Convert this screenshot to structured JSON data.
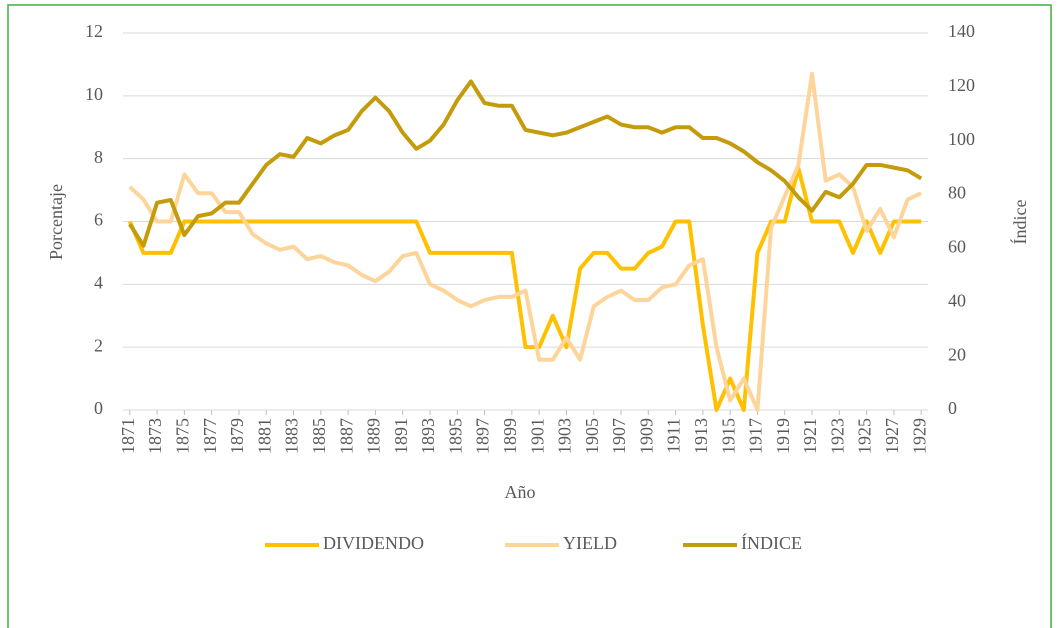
{
  "chart_data": {
    "type": "line",
    "x_label": "Año",
    "y_label": "Porcentaje",
    "y2_label": "Índice",
    "x": [
      1871,
      1872,
      1873,
      1874,
      1875,
      1876,
      1877,
      1878,
      1879,
      1880,
      1881,
      1882,
      1883,
      1884,
      1885,
      1886,
      1887,
      1888,
      1889,
      1890,
      1891,
      1892,
      1893,
      1894,
      1895,
      1896,
      1897,
      1898,
      1899,
      1900,
      1901,
      1902,
      1903,
      1904,
      1905,
      1906,
      1907,
      1908,
      1909,
      1910,
      1911,
      1912,
      1913,
      1914,
      1915,
      1916,
      1917,
      1918,
      1919,
      1920,
      1921,
      1922,
      1923,
      1924,
      1925,
      1926,
      1927,
      1928,
      1929
    ],
    "xlim": [
      1870.5,
      1929.5
    ],
    "xticks": [
      1871,
      1873,
      1875,
      1877,
      1879,
      1881,
      1883,
      1885,
      1887,
      1889,
      1891,
      1893,
      1895,
      1897,
      1899,
      1901,
      1903,
      1905,
      1907,
      1909,
      1911,
      1913,
      1915,
      1917,
      1919,
      1921,
      1923,
      1925,
      1927,
      1929
    ],
    "ylim": [
      0,
      12
    ],
    "yticks": [
      0,
      2,
      4,
      6,
      8,
      10,
      12
    ],
    "y2lim": [
      0,
      140
    ],
    "y2ticks": [
      0,
      20,
      40,
      60,
      80,
      100,
      120,
      140
    ],
    "grid": true,
    "legend": "bottom",
    "series": [
      {
        "name": "DIVIDENDO",
        "color": "#ffc000",
        "values": [
          6,
          5,
          5,
          5,
          6,
          6,
          6,
          6,
          6,
          6,
          6,
          6,
          6,
          6,
          6,
          6,
          6,
          6,
          6,
          6,
          6,
          6,
          5,
          5,
          5,
          5,
          5,
          5,
          5,
          2,
          2,
          3,
          2,
          4.5,
          5,
          5,
          4.5,
          4.5,
          5,
          5.2,
          6,
          6,
          2.7,
          0,
          1,
          0,
          5,
          6,
          6,
          7.7,
          6,
          6,
          6,
          5,
          6,
          5,
          6,
          6,
          6
        ]
      },
      {
        "name": "YIELD",
        "color": "#fdd59b",
        "values": [
          7.1,
          6.7,
          6.0,
          6.0,
          7.5,
          6.9,
          6.9,
          6.3,
          6.3,
          5.6,
          5.3,
          5.1,
          5.2,
          4.8,
          4.9,
          4.7,
          4.6,
          4.3,
          4.1,
          4.4,
          4.9,
          5.0,
          4.0,
          3.8,
          3.5,
          3.3,
          3.5,
          3.6,
          3.6,
          3.8,
          1.6,
          1.6,
          2.3,
          1.6,
          3.3,
          3.6,
          3.8,
          3.5,
          3.5,
          3.9,
          4.0,
          4.6,
          4.8,
          2.0,
          0.3,
          1.0,
          0,
          5.8,
          6.8,
          7.8,
          10.7,
          7.3,
          7.5,
          7.1,
          5.7,
          6.4,
          5.5,
          6.7,
          6.9
        ]
      },
      {
        "name": "ÍNDICE",
        "color": "#c49b0a",
        "axis": "y2",
        "values": [
          69,
          61,
          77,
          78,
          65,
          72,
          73,
          77,
          77,
          84,
          91,
          95,
          94,
          101,
          99,
          102,
          104,
          111,
          116,
          111,
          103,
          97,
          100,
          106,
          115,
          122,
          114,
          113,
          113,
          104,
          103,
          102,
          103,
          105,
          107,
          109,
          106,
          105,
          105,
          103,
          105,
          105,
          101,
          101,
          99,
          96,
          92,
          89,
          85,
          79,
          74,
          81,
          79,
          84,
          91,
          91,
          90,
          89,
          86
        ]
      }
    ]
  }
}
